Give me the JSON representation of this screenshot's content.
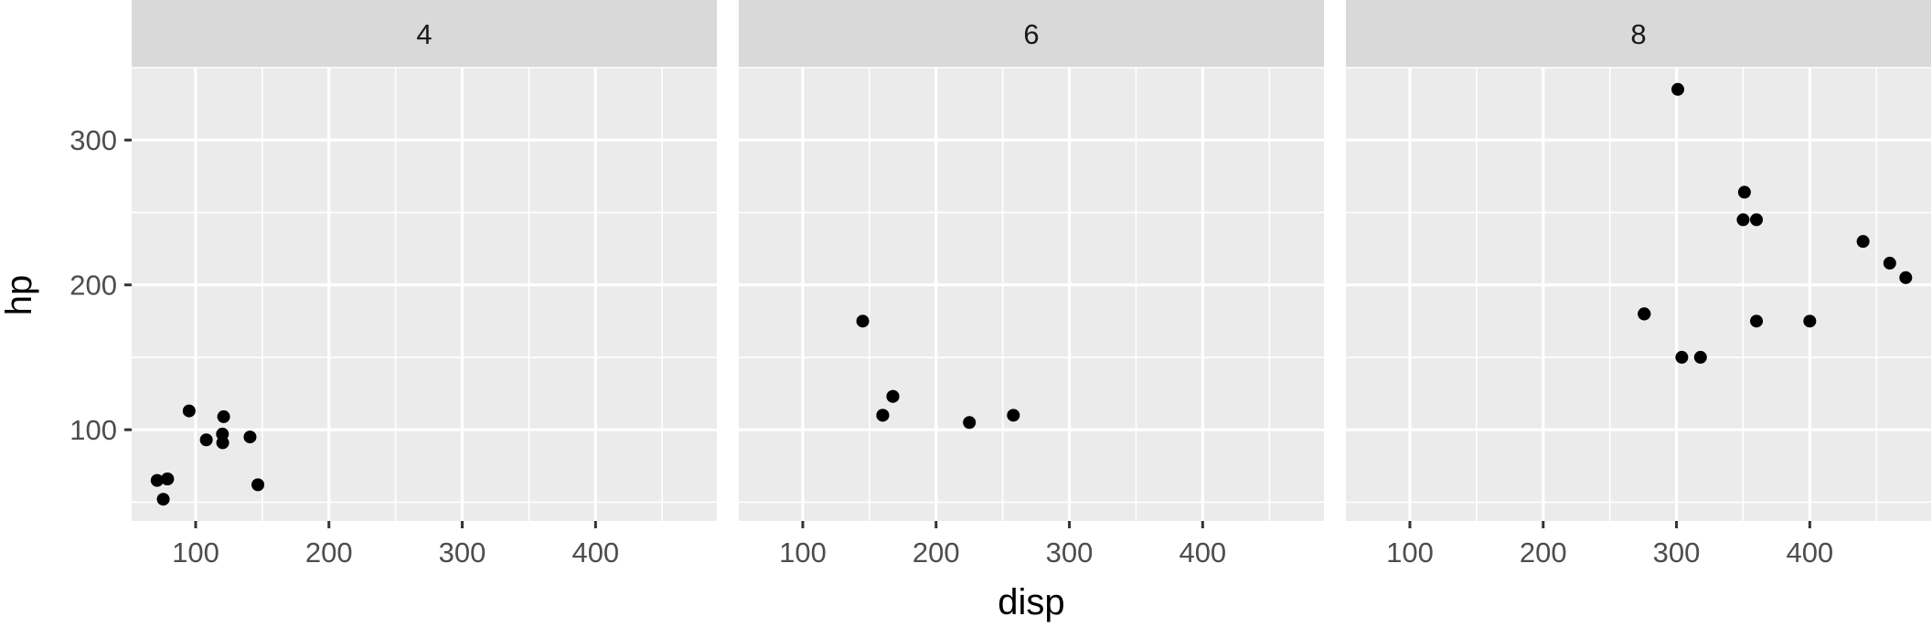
{
  "chart_data": {
    "type": "scatter",
    "xlabel": "disp",
    "ylabel": "hp",
    "xlim": [
      52,
      491
    ],
    "ylim": [
      37,
      350
    ],
    "x_ticks": [
      100,
      200,
      300,
      400
    ],
    "x_tick_labels": [
      "100",
      "200",
      "300",
      "400"
    ],
    "y_ticks": [
      100,
      200,
      300
    ],
    "y_tick_labels": [
      "100",
      "200",
      "300"
    ],
    "grid": true,
    "facets": [
      {
        "label": "4",
        "points": [
          {
            "x": 108,
            "y": 93
          },
          {
            "x": 146.7,
            "y": 62
          },
          {
            "x": 140.8,
            "y": 95
          },
          {
            "x": 78.7,
            "y": 66
          },
          {
            "x": 75.7,
            "y": 52
          },
          {
            "x": 71.1,
            "y": 65
          },
          {
            "x": 120.1,
            "y": 97
          },
          {
            "x": 79,
            "y": 66
          },
          {
            "x": 120.3,
            "y": 91
          },
          {
            "x": 95.1,
            "y": 113
          },
          {
            "x": 121,
            "y": 109
          }
        ]
      },
      {
        "label": "6",
        "points": [
          {
            "x": 160,
            "y": 110
          },
          {
            "x": 160,
            "y": 110
          },
          {
            "x": 258,
            "y": 110
          },
          {
            "x": 225,
            "y": 105
          },
          {
            "x": 167.6,
            "y": 123
          },
          {
            "x": 167.6,
            "y": 123
          },
          {
            "x": 145,
            "y": 175
          }
        ]
      },
      {
        "label": "8",
        "points": [
          {
            "x": 360,
            "y": 175
          },
          {
            "x": 360,
            "y": 245
          },
          {
            "x": 275.8,
            "y": 180
          },
          {
            "x": 275.8,
            "y": 180
          },
          {
            "x": 275.8,
            "y": 180
          },
          {
            "x": 472,
            "y": 205
          },
          {
            "x": 460,
            "y": 215
          },
          {
            "x": 440,
            "y": 230
          },
          {
            "x": 318,
            "y": 150
          },
          {
            "x": 304,
            "y": 150
          },
          {
            "x": 350,
            "y": 245
          },
          {
            "x": 400,
            "y": 175
          },
          {
            "x": 351,
            "y": 264
          },
          {
            "x": 301,
            "y": 335
          }
        ]
      }
    ]
  }
}
